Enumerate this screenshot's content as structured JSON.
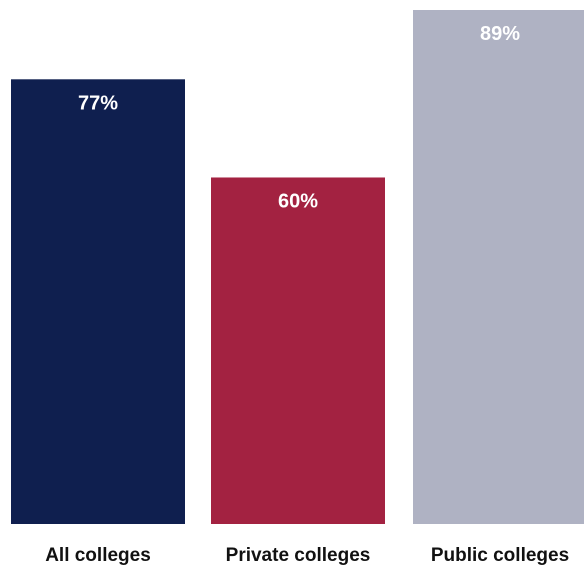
{
  "chart_data": {
    "type": "bar",
    "categories": [
      "All colleges",
      "Private colleges",
      "Public colleges"
    ],
    "values": [
      77,
      60,
      89
    ],
    "data_labels": [
      "77%",
      "60%",
      "89%"
    ],
    "colors": [
      "#0f1f4f",
      "#a32241",
      "#afb2c3"
    ],
    "title": "",
    "xlabel": "",
    "ylabel": "",
    "ylim": [
      0,
      89
    ],
    "grid": false,
    "legend": "none"
  }
}
